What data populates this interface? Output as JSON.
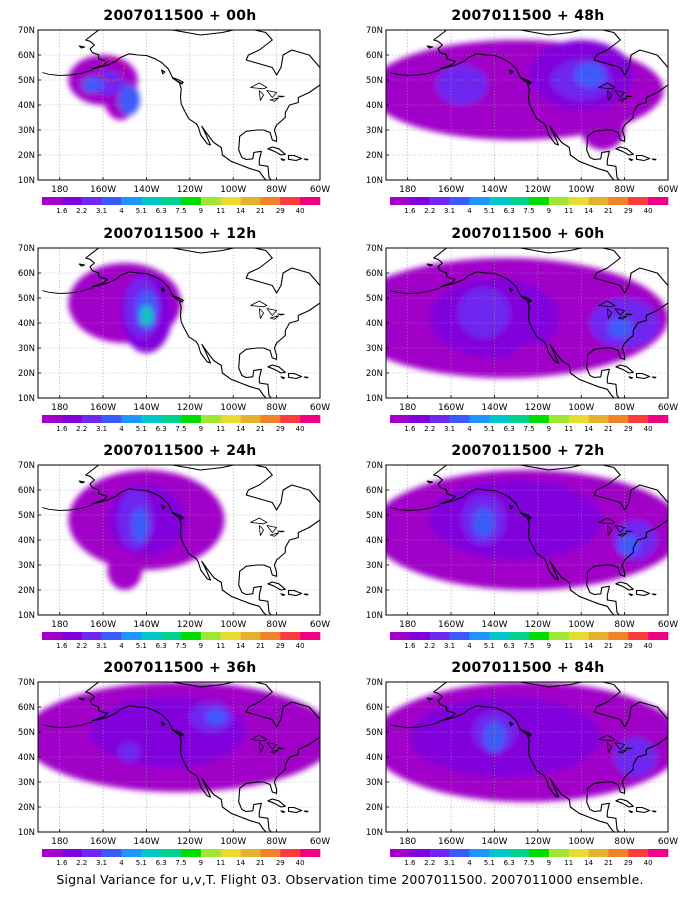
{
  "caption": "Signal Variance for u,v,T. Flight 03. Observation time 2007011500. 2007011000 ensemble.",
  "lat_labels": [
    "70N",
    "60N",
    "50N",
    "40N",
    "30N",
    "20N",
    "10N"
  ],
  "lon_labels": [
    "180",
    "160W",
    "140W",
    "120W",
    "100W",
    "80W",
    "60W"
  ],
  "colorbar": {
    "labels": [
      "1.6",
      "2.2",
      "3.1",
      "4",
      "5.1",
      "6.3",
      "7.5",
      "9",
      "11",
      "14",
      "21",
      "29",
      "40"
    ],
    "colors": [
      "#a000c8",
      "#8200dc",
      "#6e28f0",
      "#3c5afa",
      "#1e96ff",
      "#00c8c8",
      "#00d28c",
      "#00dc00",
      "#a0e632",
      "#e6dc32",
      "#e6af2d",
      "#f08228",
      "#fa3c3c",
      "#f00082"
    ]
  },
  "panels": [
    {
      "title": "2007011500 + 00h"
    },
    {
      "title": "2007011500 + 48h"
    },
    {
      "title": "2007011500 + 12h"
    },
    {
      "title": "2007011500 + 60h"
    },
    {
      "title": "2007011500 + 24h"
    },
    {
      "title": "2007011500 + 72h"
    },
    {
      "title": "2007011500 + 36h"
    },
    {
      "title": "2007011500 + 84h"
    }
  ]
}
